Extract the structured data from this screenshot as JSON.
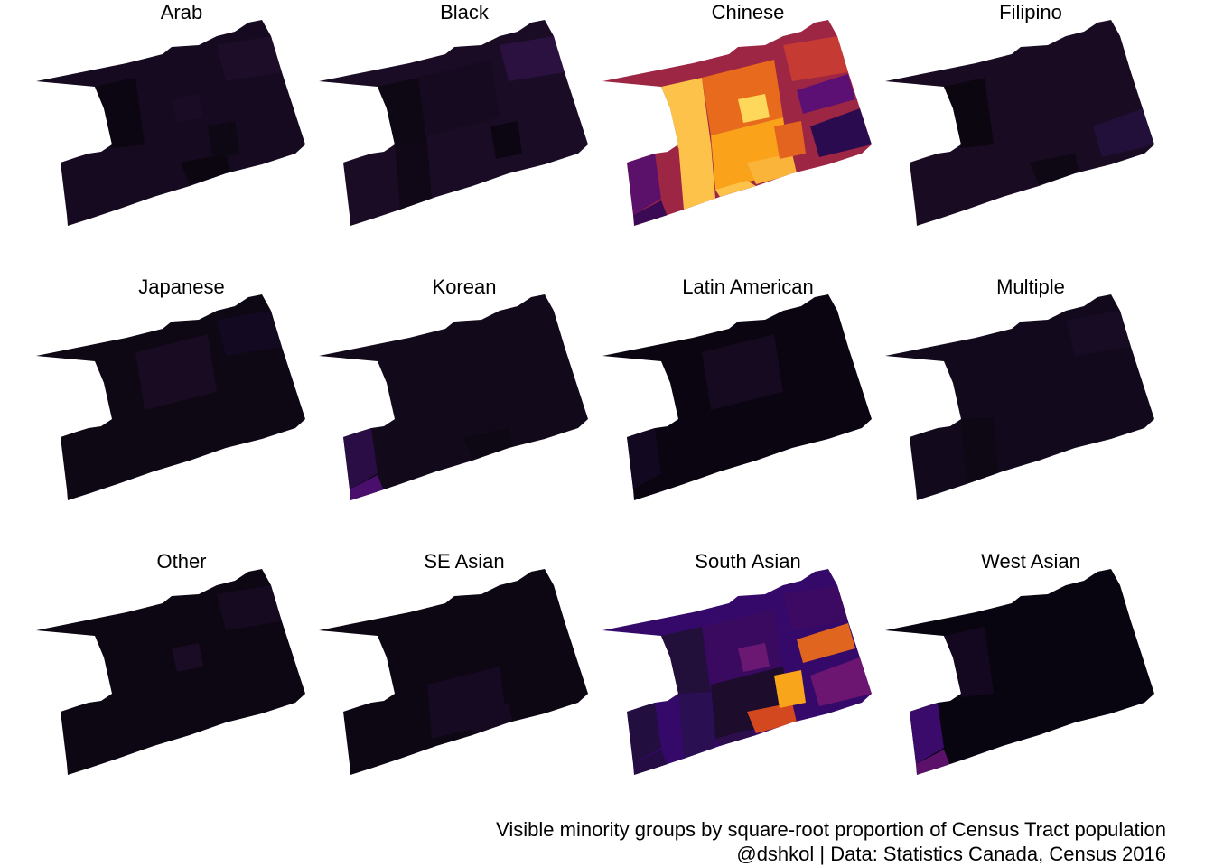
{
  "panels": [
    {
      "title": "Arab",
      "base": "#150a1f",
      "patches": [
        {
          "cell": "w1",
          "color": "#0c0612"
        },
        {
          "cell": "s2",
          "color": "#0b0610"
        },
        {
          "cell": "e1",
          "color": "#1d0d29"
        },
        {
          "cell": "s3",
          "color": "#0e0714"
        },
        {
          "cell": "c3",
          "color": "#1a0c25"
        }
      ]
    },
    {
      "title": "Black",
      "base": "#1a0c25",
      "patches": [
        {
          "cell": "w1",
          "color": "#0e0714"
        },
        {
          "cell": "w2",
          "color": "#100816"
        },
        {
          "cell": "s3",
          "color": "#0c0612"
        },
        {
          "cell": "e1",
          "color": "#2a1140"
        },
        {
          "cell": "c1",
          "color": "#150a1f"
        }
      ]
    },
    {
      "title": "Chinese",
      "base": "#9d2645",
      "patches": [
        {
          "cell": "w1",
          "color": "#fcc24a"
        },
        {
          "cell": "w2",
          "color": "#fcc24a"
        },
        {
          "cell": "c1",
          "color": "#e86a1c"
        },
        {
          "cell": "c2",
          "color": "#f9a21a"
        },
        {
          "cell": "c3",
          "color": "#fdd85a"
        },
        {
          "cell": "s1",
          "color": "#fcc24a"
        },
        {
          "cell": "s2",
          "color": "#fbb43a"
        },
        {
          "cell": "s3",
          "color": "#e2641e"
        },
        {
          "cell": "e1",
          "color": "#c53a33"
        },
        {
          "cell": "e2",
          "color": "#2b0b4f"
        },
        {
          "cell": "e3",
          "color": "#5c1073"
        },
        {
          "cell": "l1",
          "color": "#5b1169"
        },
        {
          "cell": "l2",
          "color": "#3a0a54"
        }
      ]
    },
    {
      "title": "Filipino",
      "base": "#180b22",
      "patches": [
        {
          "cell": "w1",
          "color": "#0b0610"
        },
        {
          "cell": "e2",
          "color": "#22103a"
        },
        {
          "cell": "s2",
          "color": "#0e0714"
        }
      ]
    },
    {
      "title": "Japanese",
      "base": "#0e0714",
      "patches": [
        {
          "cell": "c1",
          "color": "#180b22"
        },
        {
          "cell": "e1",
          "color": "#130920"
        }
      ]
    },
    {
      "title": "Korean",
      "base": "#12091a",
      "patches": [
        {
          "cell": "l1",
          "color": "#2b0d45"
        },
        {
          "cell": "l2",
          "color": "#4a0f6c"
        },
        {
          "cell": "s2",
          "color": "#0e0714"
        }
      ]
    },
    {
      "title": "Latin American",
      "base": "#0a0510",
      "patches": [
        {
          "cell": "l1",
          "color": "#120920"
        },
        {
          "cell": "c1",
          "color": "#150a1f"
        }
      ]
    },
    {
      "title": "Multiple",
      "base": "#120a1c",
      "patches": [
        {
          "cell": "e1",
          "color": "#180b24"
        },
        {
          "cell": "w2",
          "color": "#0e0714"
        }
      ]
    },
    {
      "title": "Other",
      "base": "#0d0613",
      "patches": [
        {
          "cell": "c3",
          "color": "#1a0c24"
        },
        {
          "cell": "e1",
          "color": "#150a20"
        }
      ]
    },
    {
      "title": "SE Asian",
      "base": "#0d0613",
      "patches": [
        {
          "cell": "s2",
          "color": "#150a20"
        },
        {
          "cell": "c2",
          "color": "#160a22"
        }
      ]
    },
    {
      "title": "South Asian",
      "base": "#35096a",
      "patches": [
        {
          "cell": "w1",
          "color": "#220f3a"
        },
        {
          "cell": "w2",
          "color": "#2a0f52"
        },
        {
          "cell": "c1",
          "color": "#3a0a60"
        },
        {
          "cell": "c2",
          "color": "#1d0c2c"
        },
        {
          "cell": "c3",
          "color": "#6b1872"
        },
        {
          "cell": "s1",
          "color": "#2b0e4a"
        },
        {
          "cell": "s2",
          "color": "#d4481f"
        },
        {
          "cell": "s3",
          "color": "#f8a51c"
        },
        {
          "cell": "e1",
          "color": "#3c0a62"
        },
        {
          "cell": "e2",
          "color": "#6c1671"
        },
        {
          "cell": "e3",
          "color": "#e0651e"
        },
        {
          "cell": "l1",
          "color": "#220f40"
        },
        {
          "cell": "l2",
          "color": "#260c45"
        }
      ]
    },
    {
      "title": "West Asian",
      "base": "#080410",
      "patches": [
        {
          "cell": "w1",
          "color": "#130820"
        },
        {
          "cell": "l1",
          "color": "#3a0b6a"
        },
        {
          "cell": "l2",
          "color": "#5b1169"
        }
      ]
    }
  ],
  "caption": {
    "line1": "Visible minority groups by square-root proportion of Census Tract population",
    "line2": "@dshkol | Data: Statistics Canada, Census 2016"
  }
}
